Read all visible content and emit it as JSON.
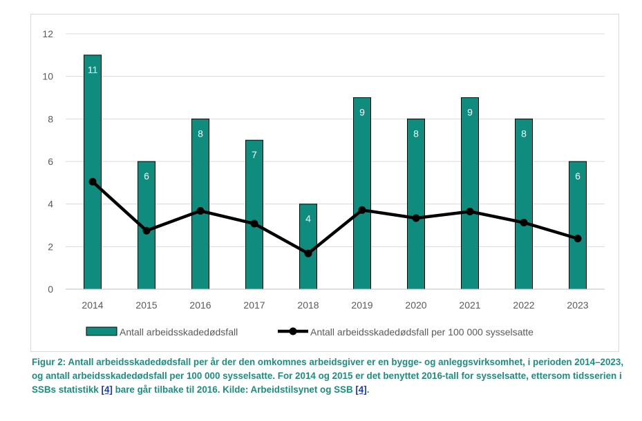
{
  "chart_data": {
    "type": "bar",
    "categories": [
      "2014",
      "2015",
      "2016",
      "2017",
      "2018",
      "2019",
      "2020",
      "2021",
      "2022",
      "2023"
    ],
    "series": [
      {
        "name": "Antall arbeidsskadedødsfall",
        "type": "bar",
        "values": [
          11,
          6,
          8,
          7,
          4,
          9,
          8,
          9,
          8,
          6
        ],
        "color": "#108c7f"
      },
      {
        "name": "Antall arbeidsskadedødsfall per 100 000 sysselsatte",
        "type": "line",
        "values": [
          5.05,
          2.75,
          3.68,
          3.08,
          1.68,
          3.72,
          3.34,
          3.65,
          3.13,
          2.38
        ],
        "color": "#000000"
      }
    ],
    "ylim": [
      0,
      12
    ],
    "yticks": [
      "0",
      "2",
      "4",
      "6",
      "8",
      "10",
      "12"
    ],
    "grid": true,
    "legend_position": "bottom",
    "xlabel": "",
    "ylabel": "",
    "title": ""
  },
  "caption": {
    "text_1": "Figur 2: Antall arbeidsskadedødsfall per år der den omkomnes arbeidsgiver er en bygge- og anleggsvirksomhet, i perioden 2014–2023, og antall arbeidsskadedødsfall per 100 000 sysselsatte. For 2014 og 2015 er det benyttet 2016-tall for sysselsatte, ettersom tidsserien i SSBs statistikk ",
    "link_1": "[4]",
    "text_2": " bare går tilbake til 2016. Kilde: Arbeidstilsynet og SSB ",
    "link_2": "[4]",
    "text_3": "."
  }
}
